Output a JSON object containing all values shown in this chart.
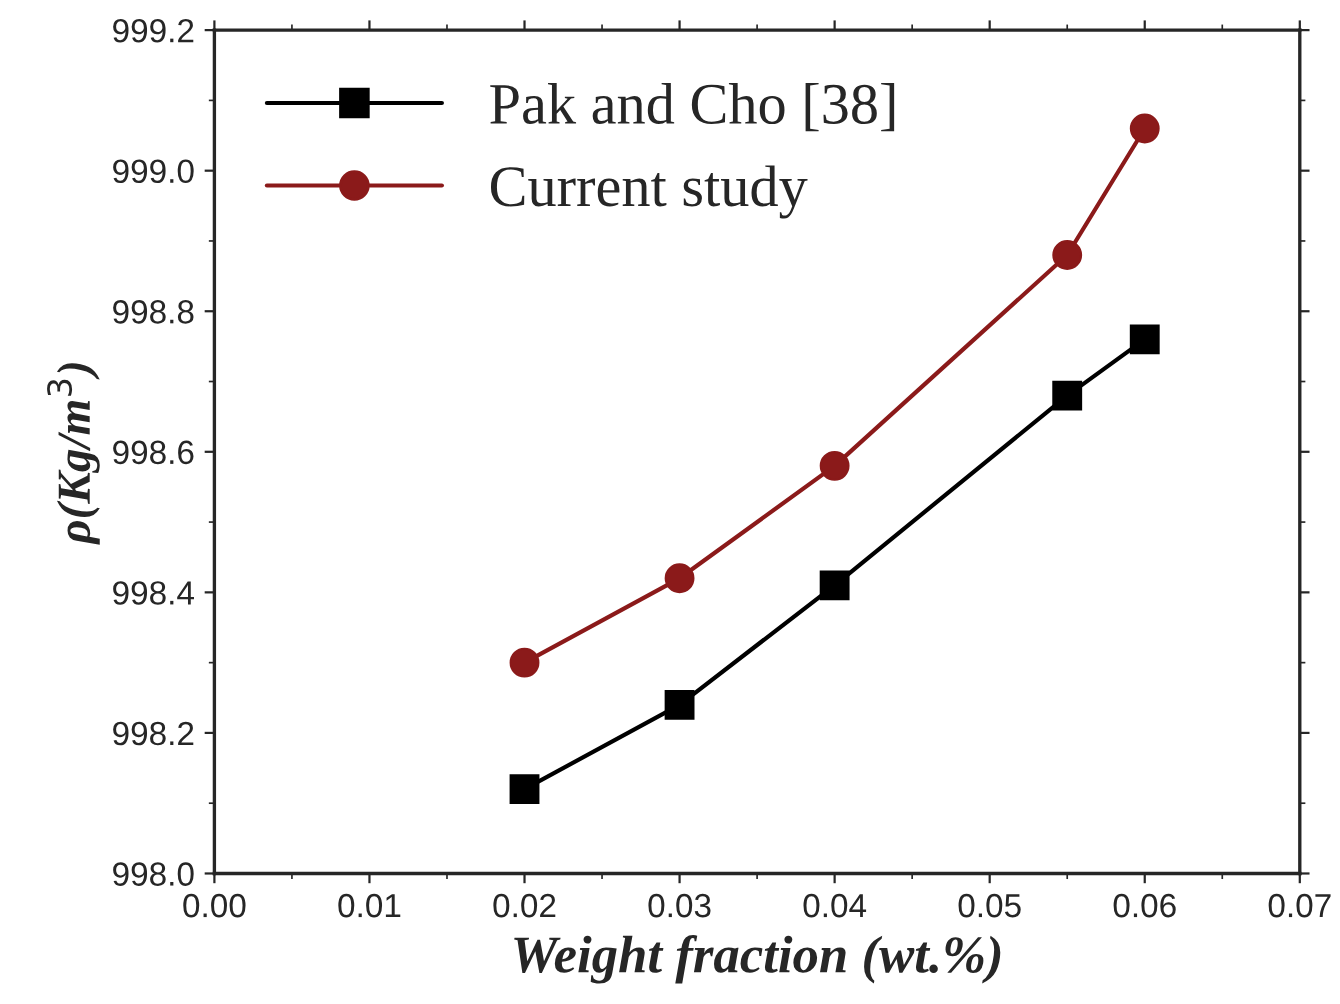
{
  "chart_data": {
    "type": "line",
    "xlabel": "Weight fraction (wt.%)",
    "ylabel": "ρ(Kg/m$^{3}$)",
    "series": [
      {
        "name": "Pak and Cho [38]",
        "color": "#000000",
        "marker": "square",
        "x": [
          0.02,
          0.03,
          0.04,
          0.055,
          0.06
        ],
        "values": [
          998.12,
          998.24,
          998.41,
          998.68,
          998.76
        ]
      },
      {
        "name": "Current study",
        "color": "#8b1a1a",
        "marker": "circle",
        "x": [
          0.02,
          0.03,
          0.04,
          0.055,
          0.06
        ],
        "values": [
          998.3,
          998.42,
          998.58,
          998.88,
          999.06
        ]
      }
    ],
    "xlim": [
      0.0,
      0.07
    ],
    "xticks": [
      {
        "value": 0.0,
        "label": "0.00"
      },
      0.01,
      0.02,
      0.03,
      0.04,
      0.05,
      0.06,
      0.07
    ],
    "ylim": [
      998.0,
      999.2
    ],
    "yticks": [
      {
        "value": 998.0,
        "label": "998.0"
      },
      998.2,
      998.4,
      998.6,
      998.8,
      {
        "value": 999.0,
        "label": "999.0"
      },
      999.2
    ],
    "grid": false,
    "legend": "top left",
    "line_style": "solid"
  }
}
